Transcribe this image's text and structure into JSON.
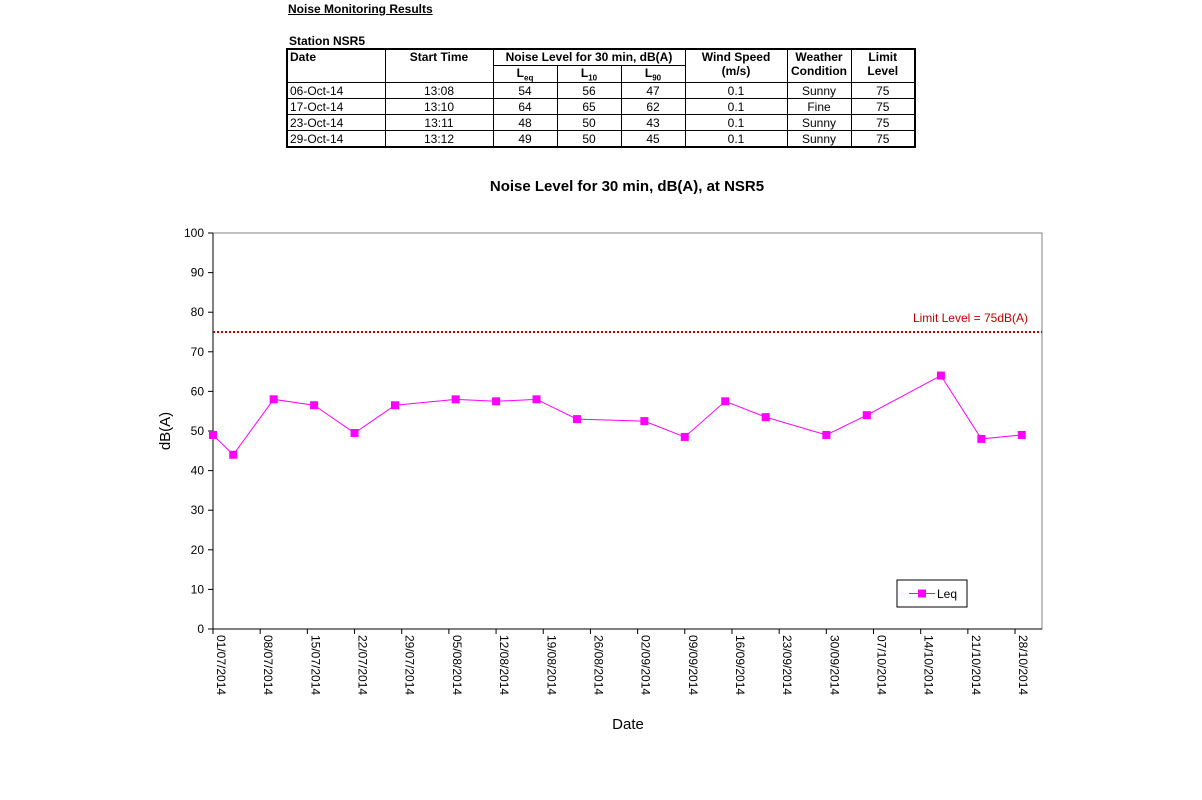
{
  "report": {
    "title": "Noise Monitoring Results",
    "station": "Station NSR5"
  },
  "table": {
    "headers": {
      "date": "Date",
      "start_time": "Start Time",
      "noise_level": "Noise Level for 30 min, dB(A)",
      "leq": "L",
      "leq_sub": "eq",
      "l10": "L",
      "l10_sub": "10",
      "l90": "L",
      "l90_sub": "90",
      "wind_speed": "Wind Speed",
      "wind_unit": "(m/s)",
      "weather": "Weather",
      "weather2": "Condition",
      "limit": "Limit",
      "limit2": "Level"
    },
    "rows": [
      {
        "date": "06-Oct-14",
        "time": "13:08",
        "leq": "54",
        "l10": "56",
        "l90": "47",
        "wind": "0.1",
        "weather": "Sunny",
        "limit": "75"
      },
      {
        "date": "17-Oct-14",
        "time": "13:10",
        "leq": "64",
        "l10": "65",
        "l90": "62",
        "wind": "0.1",
        "weather": "Fine",
        "limit": "75"
      },
      {
        "date": "23-Oct-14",
        "time": "13:11",
        "leq": "48",
        "l10": "50",
        "l90": "43",
        "wind": "0.1",
        "weather": "Sunny",
        "limit": "75"
      },
      {
        "date": "29-Oct-14",
        "time": "13:12",
        "leq": "49",
        "l10": "50",
        "l90": "45",
        "wind": "0.1",
        "weather": "Sunny",
        "limit": "75"
      }
    ]
  },
  "chart_data": {
    "type": "line",
    "title": "Noise Level for 30 min, dB(A), at NSR5",
    "xlabel": "Date",
    "ylabel": "dB(A)",
    "ylim": [
      0,
      100
    ],
    "yticks": [
      0,
      10,
      20,
      30,
      40,
      50,
      60,
      70,
      80,
      90,
      100
    ],
    "xlim": [
      "2014-07-01",
      "2014-11-01"
    ],
    "xticks": [
      "01/07/2014",
      "08/07/2014",
      "15/07/2014",
      "22/07/2014",
      "29/07/2014",
      "05/08/2014",
      "12/08/2014",
      "19/08/2014",
      "26/08/2014",
      "02/09/2014",
      "09/09/2014",
      "16/09/2014",
      "23/09/2014",
      "30/09/2014",
      "07/10/2014",
      "14/10/2014",
      "21/10/2014",
      "28/10/2014"
    ],
    "series": [
      {
        "name": "Leq",
        "color": "#ff00ff",
        "points": [
          {
            "x": "2014-07-01",
            "y": 49
          },
          {
            "x": "2014-07-04",
            "y": 44
          },
          {
            "x": "2014-07-10",
            "y": 58
          },
          {
            "x": "2014-07-16",
            "y": 56.5
          },
          {
            "x": "2014-07-22",
            "y": 49.5
          },
          {
            "x": "2014-07-28",
            "y": 56.5
          },
          {
            "x": "2014-08-06",
            "y": 58
          },
          {
            "x": "2014-08-12",
            "y": 57.5
          },
          {
            "x": "2014-08-18",
            "y": 58
          },
          {
            "x": "2014-08-24",
            "y": 53
          },
          {
            "x": "2014-09-03",
            "y": 52.5
          },
          {
            "x": "2014-09-09",
            "y": 48.5
          },
          {
            "x": "2014-09-15",
            "y": 57.5
          },
          {
            "x": "2014-09-21",
            "y": 53.5
          },
          {
            "x": "2014-09-30",
            "y": 49
          },
          {
            "x": "2014-10-06",
            "y": 54
          },
          {
            "x": "2014-10-17",
            "y": 64
          },
          {
            "x": "2014-10-23",
            "y": 48
          },
          {
            "x": "2014-10-29",
            "y": 49
          }
        ]
      }
    ],
    "limit_line": {
      "value": 75,
      "label": "Limit Level  = 75dB(A)",
      "color": "#c00000"
    },
    "legend_position": "bottom-right",
    "grid": false
  }
}
